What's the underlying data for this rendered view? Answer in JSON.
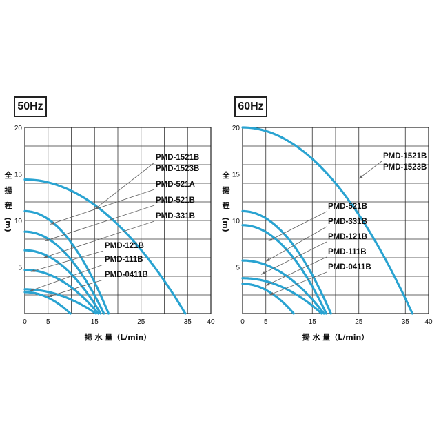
{
  "chart_data": [
    {
      "type": "line",
      "title": "50Hz",
      "xlabel": "揚 水 量（L/min）",
      "ylabel": "全揚程（m）",
      "xlim": [
        0,
        40
      ],
      "ylim": [
        0,
        20
      ],
      "xticks": [
        0,
        5,
        15,
        25,
        35,
        40
      ],
      "yticks": [
        5,
        10,
        15,
        20
      ],
      "grid": true,
      "color": "#29a3d1",
      "series": [
        {
          "name": "PMD-1521B / PMD-1523B",
          "shutoff_head": 14.4,
          "max_flow": 34.5
        },
        {
          "name": "PMD-521A",
          "shutoff_head": 11.0,
          "max_flow": 18.0
        },
        {
          "name": "PMD-521B",
          "shutoff_head": 8.8,
          "max_flow": 17.0
        },
        {
          "name": "PMD-331B",
          "shutoff_head": 6.8,
          "max_flow": 16.3
        },
        {
          "name": "PMD-121B",
          "shutoff_head": 4.7,
          "max_flow": 15.8
        },
        {
          "name": "PMD-111B",
          "shutoff_head": 2.6,
          "max_flow": 15.3
        },
        {
          "name": "PMD-0411B",
          "shutoff_head": 2.3,
          "max_flow": 9.8
        }
      ],
      "labels": [
        "PMD-1521B",
        "PMD-1523B",
        "PMD-521A",
        "PMD-521B",
        "PMD-331B",
        "PMD-121B",
        "PMD-111B",
        "PMD-0411B"
      ]
    },
    {
      "type": "line",
      "title": "60Hz",
      "xlabel": "揚 水 量（L/min）",
      "ylabel": "全揚程（m）",
      "xlim": [
        0,
        40
      ],
      "ylim": [
        0,
        20
      ],
      "xticks": [
        0,
        5,
        15,
        25,
        35,
        40
      ],
      "yticks": [
        5,
        10,
        15,
        20
      ],
      "grid": true,
      "color": "#29a3d1",
      "series": [
        {
          "name": "PMD-1521B / PMD-1523B",
          "shutoff_head": 20.0,
          "max_flow": 36.5
        },
        {
          "name": "PMD-521B",
          "shutoff_head": 11.0,
          "max_flow": 19.0
        },
        {
          "name": "PMD-331B",
          "shutoff_head": 9.5,
          "max_flow": 18.0
        },
        {
          "name": "PMD-121B",
          "shutoff_head": 5.7,
          "max_flow": 17.5
        },
        {
          "name": "PMD-111B",
          "shutoff_head": 3.8,
          "max_flow": 17.0
        },
        {
          "name": "PMD-0411B",
          "shutoff_head": 3.2,
          "max_flow": 11.0
        }
      ],
      "labels": [
        "PMD-1521B",
        "PMD-1523B",
        "PMD-521B",
        "PMD-331B",
        "PMD-121B",
        "PMD-111B",
        "PMD-0411B"
      ]
    }
  ]
}
